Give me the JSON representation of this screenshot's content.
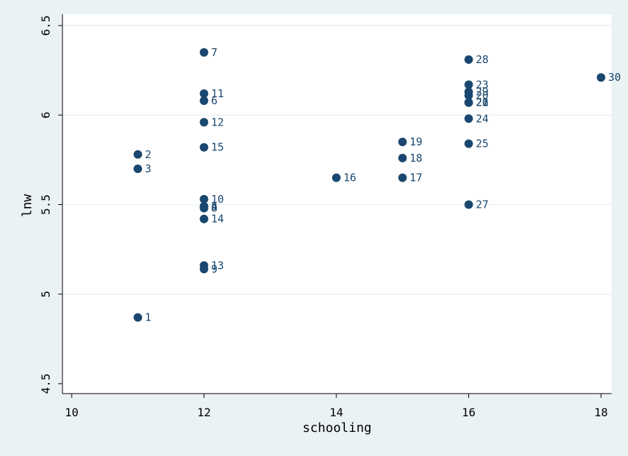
{
  "chart_data": {
    "type": "scatter",
    "title": "",
    "xlabel": "schooling",
    "ylabel": "lnw",
    "xlim": [
      10,
      18
    ],
    "ylim": [
      4.5,
      6.5
    ],
    "xticks": [
      10,
      12,
      14,
      16,
      18
    ],
    "yticks": [
      4.5,
      5,
      5.5,
      6,
      6.5
    ],
    "ytick_labels": [
      "4.5",
      "5",
      "5.5",
      "6",
      "6.5"
    ],
    "grid": true,
    "marker_color": "#1a476f",
    "plot_background": "#ffffff",
    "page_background": "#eaf2f3",
    "points": [
      {
        "label": "1",
        "x": 11,
        "y": 4.87
      },
      {
        "label": "2",
        "x": 11,
        "y": 5.78
      },
      {
        "label": "3",
        "x": 11,
        "y": 5.7
      },
      {
        "label": "4",
        "x": 12,
        "y": 5.49
      },
      {
        "label": "5",
        "x": 12,
        "y": 5.49
      },
      {
        "label": "6",
        "x": 12,
        "y": 6.08
      },
      {
        "label": "7",
        "x": 12,
        "y": 6.35
      },
      {
        "label": "8",
        "x": 12,
        "y": 5.48
      },
      {
        "label": "9",
        "x": 12,
        "y": 5.14
      },
      {
        "label": "10",
        "x": 12,
        "y": 5.53
      },
      {
        "label": "11",
        "x": 12,
        "y": 6.12
      },
      {
        "label": "12",
        "x": 12,
        "y": 5.96
      },
      {
        "label": "13",
        "x": 12,
        "y": 5.16
      },
      {
        "label": "14",
        "x": 12,
        "y": 5.42
      },
      {
        "label": "15",
        "x": 12,
        "y": 5.82
      },
      {
        "label": "16",
        "x": 14,
        "y": 5.65
      },
      {
        "label": "17",
        "x": 15,
        "y": 5.65
      },
      {
        "label": "18",
        "x": 15,
        "y": 5.76
      },
      {
        "label": "19",
        "x": 15,
        "y": 5.85
      },
      {
        "label": "20",
        "x": 16,
        "y": 6.11
      },
      {
        "label": "21",
        "x": 16,
        "y": 6.07
      },
      {
        "label": "22",
        "x": 16,
        "y": 6.07
      },
      {
        "label": "23",
        "x": 16,
        "y": 6.17
      },
      {
        "label": "24",
        "x": 16,
        "y": 5.98
      },
      {
        "label": "25",
        "x": 16,
        "y": 5.84
      },
      {
        "label": "26",
        "x": 16,
        "y": 6.07
      },
      {
        "label": "27",
        "x": 16,
        "y": 5.5
      },
      {
        "label": "28",
        "x": 16,
        "y": 6.31
      },
      {
        "label": "29",
        "x": 16,
        "y": 6.13
      },
      {
        "label": "30",
        "x": 18,
        "y": 6.21
      }
    ]
  }
}
